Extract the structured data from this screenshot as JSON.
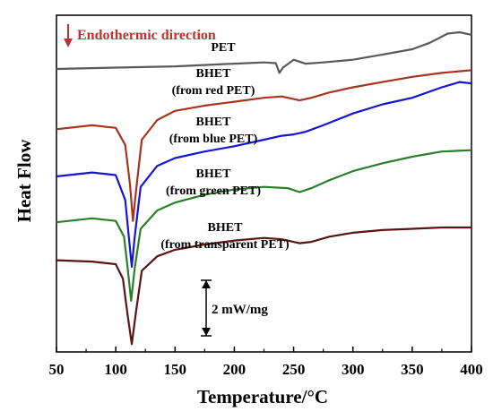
{
  "chart_data": {
    "type": "line",
    "title": "",
    "xlabel": "Temperature/°C",
    "ylabel": "Heat Flow",
    "xlim": [
      50,
      400
    ],
    "x_ticks": [
      "50",
      "100",
      "150",
      "200",
      "250",
      "300",
      "350",
      "400"
    ],
    "y_ticks_shown": false,
    "grid": false,
    "annotation": {
      "text": "Endothermic direction",
      "arrow": "down",
      "color": "#c0312b"
    },
    "scale_bar": {
      "label": "2 mW/mg",
      "value": 2,
      "unit": "mW/mg",
      "x": 175
    },
    "series": [
      {
        "label_lines": [
          "PET"
        ],
        "color": "#595959",
        "points": [
          [
            50,
            8.9
          ],
          [
            100,
            8.95
          ],
          [
            150,
            9.0
          ],
          [
            200,
            9.1
          ],
          [
            225,
            9.15
          ],
          [
            235,
            9.12
          ],
          [
            238,
            8.75
          ],
          [
            241,
            8.95
          ],
          [
            250,
            9.25
          ],
          [
            260,
            9.1
          ],
          [
            275,
            9.15
          ],
          [
            300,
            9.25
          ],
          [
            325,
            9.45
          ],
          [
            350,
            9.65
          ],
          [
            365,
            9.9
          ],
          [
            380,
            10.25
          ],
          [
            390,
            10.3
          ],
          [
            400,
            10.2
          ]
        ]
      },
      {
        "label_lines": [
          "BHET",
          "(from red PET)"
        ],
        "color": "#a8341e",
        "points": [
          [
            50,
            6.6
          ],
          [
            80,
            6.75
          ],
          [
            100,
            6.65
          ],
          [
            108,
            6.0
          ],
          [
            112,
            4.5
          ],
          [
            114.5,
            3.1
          ],
          [
            117,
            4.2
          ],
          [
            122,
            6.2
          ],
          [
            135,
            6.95
          ],
          [
            150,
            7.3
          ],
          [
            175,
            7.5
          ],
          [
            200,
            7.65
          ],
          [
            225,
            7.8
          ],
          [
            240,
            7.85
          ],
          [
            255,
            7.7
          ],
          [
            265,
            7.8
          ],
          [
            280,
            8.0
          ],
          [
            300,
            8.2
          ],
          [
            325,
            8.4
          ],
          [
            350,
            8.6
          ],
          [
            375,
            8.75
          ],
          [
            400,
            8.85
          ]
        ]
      },
      {
        "label_lines": [
          "BHET",
          "(from blue PET)"
        ],
        "color": "#1515d6",
        "points": [
          [
            50,
            4.8
          ],
          [
            80,
            4.95
          ],
          [
            100,
            4.85
          ],
          [
            108,
            3.9
          ],
          [
            111,
            2.5
          ],
          [
            113.5,
            1.35
          ],
          [
            116,
            2.5
          ],
          [
            121,
            4.4
          ],
          [
            135,
            5.2
          ],
          [
            150,
            5.5
          ],
          [
            175,
            5.75
          ],
          [
            200,
            5.95
          ],
          [
            225,
            6.2
          ],
          [
            240,
            6.35
          ],
          [
            250,
            6.4
          ],
          [
            260,
            6.5
          ],
          [
            275,
            6.75
          ],
          [
            300,
            7.2
          ],
          [
            325,
            7.55
          ],
          [
            350,
            7.8
          ],
          [
            375,
            8.2
          ],
          [
            390,
            8.4
          ],
          [
            400,
            8.35
          ]
        ]
      },
      {
        "label_lines": [
          "BHET",
          "(from green PET)"
        ],
        "color": "#2a7f2a",
        "points": [
          [
            50,
            3.05
          ],
          [
            80,
            3.2
          ],
          [
            100,
            3.1
          ],
          [
            107,
            2.5
          ],
          [
            110,
            1.3
          ],
          [
            113,
            0.05
          ],
          [
            116,
            1.3
          ],
          [
            121,
            2.8
          ],
          [
            135,
            3.5
          ],
          [
            150,
            3.8
          ],
          [
            175,
            4.1
          ],
          [
            200,
            4.3
          ],
          [
            225,
            4.4
          ],
          [
            245,
            4.35
          ],
          [
            255,
            4.2
          ],
          [
            265,
            4.35
          ],
          [
            280,
            4.65
          ],
          [
            300,
            5.0
          ],
          [
            325,
            5.3
          ],
          [
            350,
            5.55
          ],
          [
            375,
            5.75
          ],
          [
            400,
            5.8
          ]
        ]
      },
      {
        "label_lines": [
          "BHET",
          "(from transparent PET)"
        ],
        "color": "#5a1414",
        "points": [
          [
            50,
            1.6
          ],
          [
            80,
            1.55
          ],
          [
            100,
            1.45
          ],
          [
            106,
            0.9
          ],
          [
            110,
            -0.5
          ],
          [
            113.5,
            -1.6
          ],
          [
            117,
            -0.4
          ],
          [
            122,
            1.2
          ],
          [
            135,
            1.75
          ],
          [
            150,
            2.0
          ],
          [
            175,
            2.2
          ],
          [
            200,
            2.35
          ],
          [
            225,
            2.45
          ],
          [
            240,
            2.4
          ],
          [
            255,
            2.25
          ],
          [
            265,
            2.3
          ],
          [
            280,
            2.5
          ],
          [
            300,
            2.65
          ],
          [
            325,
            2.75
          ],
          [
            350,
            2.8
          ],
          [
            375,
            2.85
          ],
          [
            400,
            2.85
          ]
        ]
      }
    ]
  }
}
